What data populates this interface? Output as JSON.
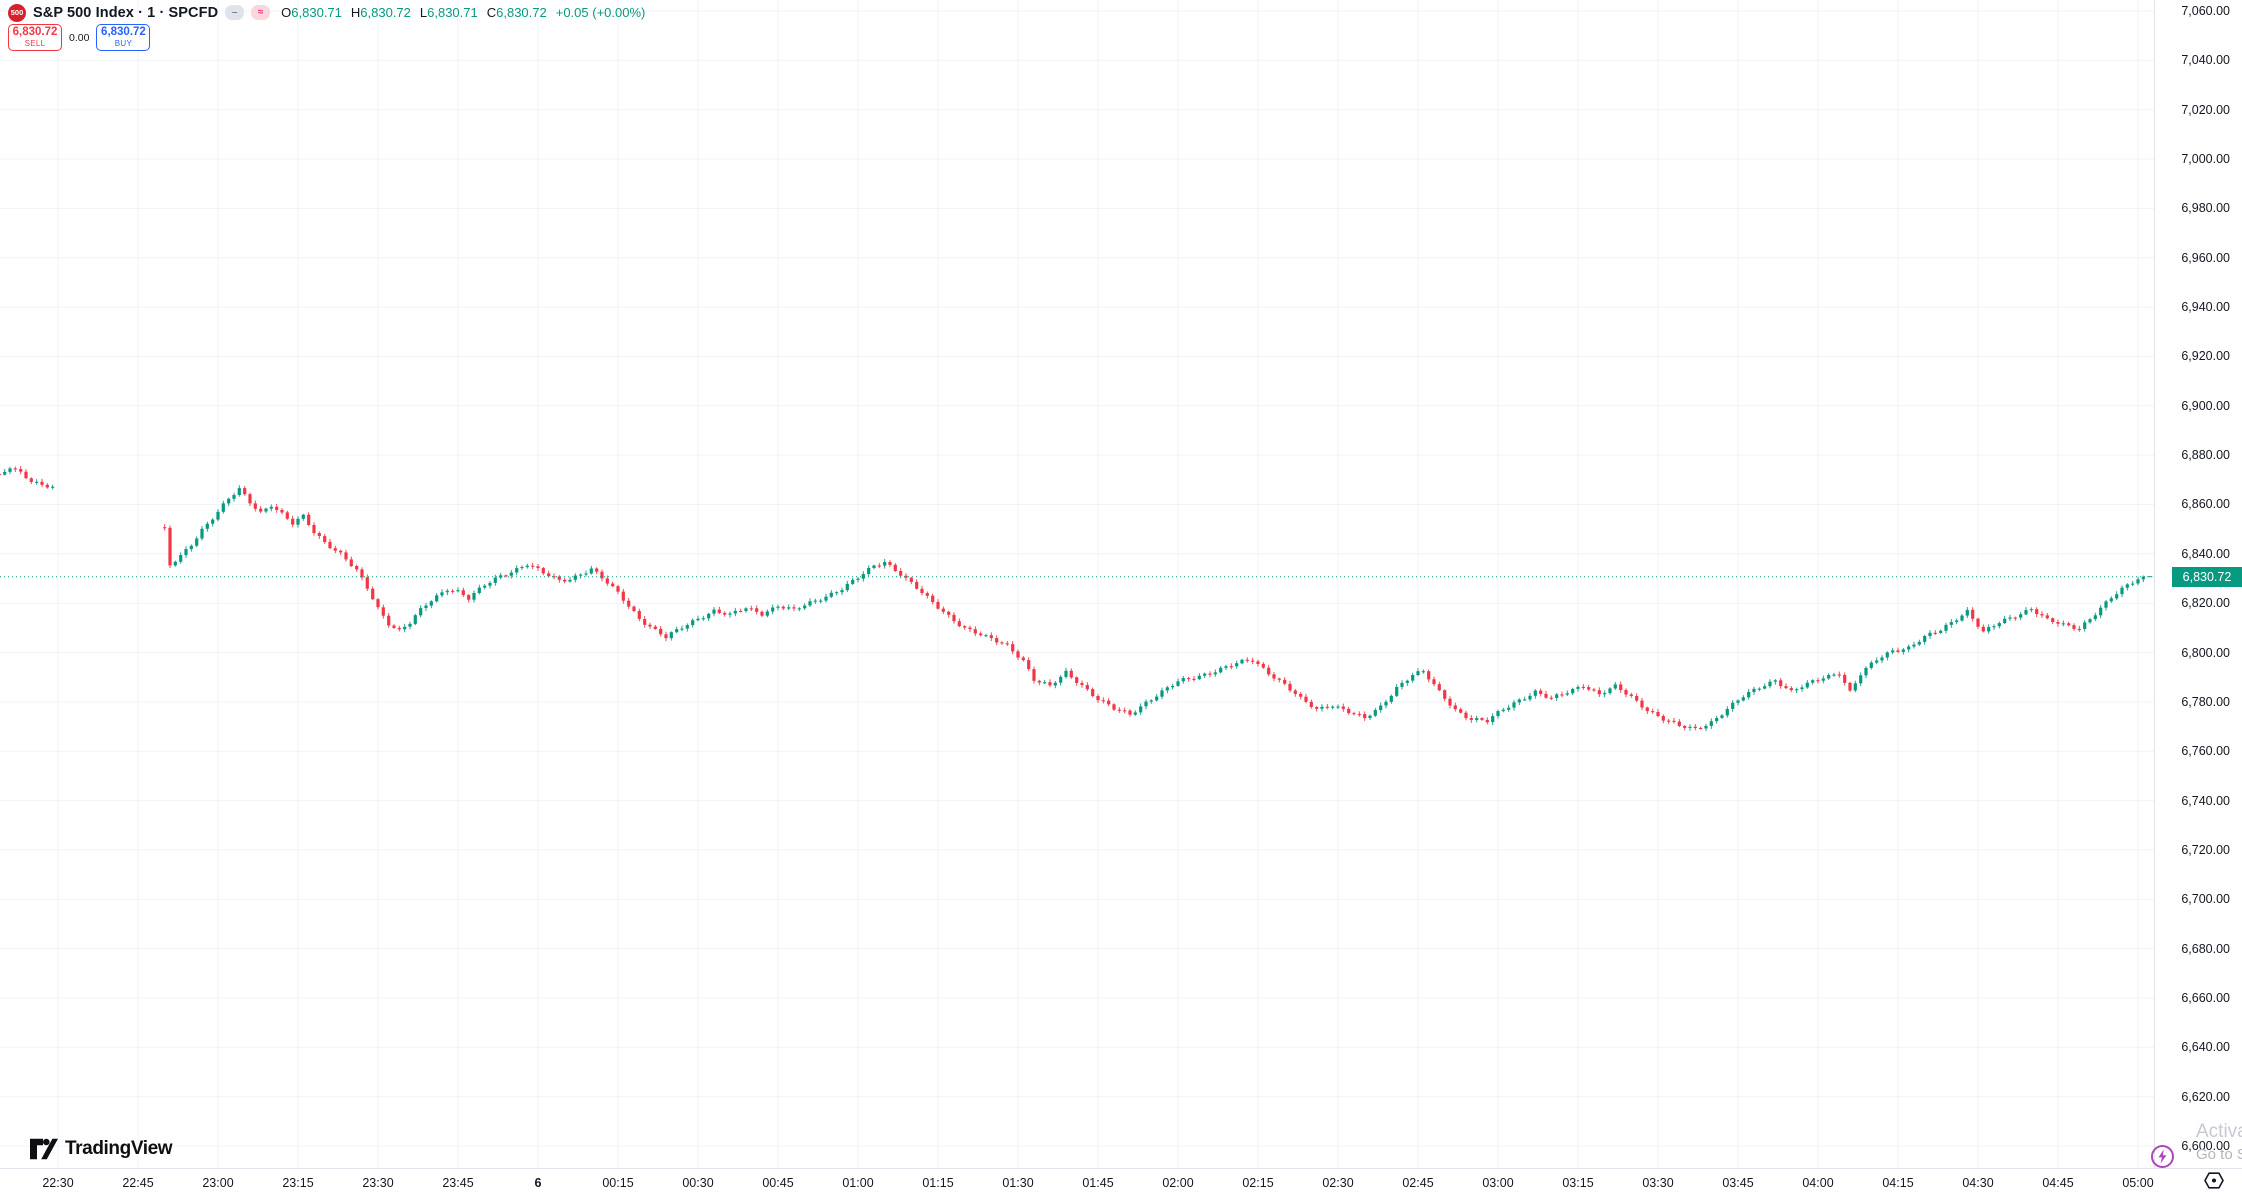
{
  "header": {
    "symbol_badge": "500",
    "title": "S&P 500 Index · 1 · SPCFD",
    "ohlc": {
      "o_label": "O",
      "o": "6,830.71",
      "h_label": "H",
      "h": "6,830.72",
      "l_label": "L",
      "l": "6,830.71",
      "c_label": "C",
      "c": "6,830.72",
      "change": "+0.05 (+0.00%)"
    },
    "sell_button": {
      "price": "6,830.72",
      "label": "SELL"
    },
    "spread": "0.00",
    "buy_button": {
      "price": "6,830.72",
      "label": "BUY"
    }
  },
  "watermark": {
    "brand": "TradingView"
  },
  "promo": {
    "line1": "Activa",
    "line2": "Go to S"
  },
  "price_axis": {
    "labels": [
      "7,060.00",
      "7,040.00",
      "7,020.00",
      "7,000.00",
      "6,980.00",
      "6,960.00",
      "6,940.00",
      "6,920.00",
      "6,900.00",
      "6,880.00",
      "6,860.00",
      "6,840.00",
      "6,820.00",
      "6,800.00",
      "6,780.00",
      "6,760.00",
      "6,740.00",
      "6,720.00",
      "6,700.00",
      "6,680.00",
      "6,660.00",
      "6,640.00",
      "6,620.00",
      "6,600.00"
    ],
    "values": [
      7060,
      7040,
      7020,
      7000,
      6980,
      6960,
      6940,
      6920,
      6900,
      6880,
      6860,
      6840,
      6820,
      6800,
      6780,
      6760,
      6740,
      6720,
      6700,
      6680,
      6660,
      6640,
      6620,
      6600
    ],
    "last_price_label": "6,830.72"
  },
  "time_axis": {
    "labels": [
      {
        "text": "22:30",
        "bold": false
      },
      {
        "text": "22:45",
        "bold": false
      },
      {
        "text": "23:00",
        "bold": false
      },
      {
        "text": "23:15",
        "bold": false
      },
      {
        "text": "23:30",
        "bold": false
      },
      {
        "text": "23:45",
        "bold": false
      },
      {
        "text": "6",
        "bold": true
      },
      {
        "text": "00:15",
        "bold": false
      },
      {
        "text": "00:30",
        "bold": false
      },
      {
        "text": "00:45",
        "bold": false
      },
      {
        "text": "01:00",
        "bold": false
      },
      {
        "text": "01:15",
        "bold": false
      },
      {
        "text": "01:30",
        "bold": false
      },
      {
        "text": "01:45",
        "bold": false
      },
      {
        "text": "02:00",
        "bold": false
      },
      {
        "text": "02:15",
        "bold": false
      },
      {
        "text": "02:30",
        "bold": false
      },
      {
        "text": "02:45",
        "bold": false
      },
      {
        "text": "03:00",
        "bold": false
      },
      {
        "text": "03:15",
        "bold": false
      },
      {
        "text": "03:30",
        "bold": false
      },
      {
        "text": "03:45",
        "bold": false
      },
      {
        "text": "04:00",
        "bold": false
      },
      {
        "text": "04:15",
        "bold": false
      },
      {
        "text": "04:30",
        "bold": false
      },
      {
        "text": "04:45",
        "bold": false
      },
      {
        "text": "05:00",
        "bold": false
      }
    ]
  },
  "colors": {
    "up": "#089981",
    "down": "#f23645",
    "grid": "#f0f3fa",
    "sell": "#f23645",
    "buy": "#2962ff",
    "badge_bg": "#089981",
    "text": "#131722",
    "muted": "#787b86",
    "watermark_gray": "#c6c9d1",
    "purple": "#ab47bc"
  },
  "chart_data": {
    "type": "candlestick",
    "title": "S&P 500 Index",
    "interval": "1 minute",
    "exchange": "SPCFD",
    "current_bar": {
      "open": 6830.71,
      "high": 6830.72,
      "low": 6830.71,
      "close": 6830.72,
      "change": 0.05,
      "change_pct": 0.0
    },
    "price_line": 6830.72,
    "ylim": [
      6600,
      7060
    ],
    "y_step": 20,
    "x_start": "22:19",
    "x_end": "05:01",
    "x_tick_step_minutes": 15,
    "session_gap": {
      "from": "22:30",
      "to": "22:50"
    },
    "grid": true,
    "path_anchors": [
      [
        "22:19",
        6871
      ],
      [
        "22:21",
        6875
      ],
      [
        "22:23",
        6873
      ],
      [
        "22:25",
        6870
      ],
      [
        "22:27",
        6868
      ],
      [
        "22:29",
        6867
      ],
      [
        "22:50",
        6849.5
      ],
      [
        "22:51",
        6835
      ],
      [
        "22:53",
        6839
      ],
      [
        "22:55",
        6844
      ],
      [
        "22:57",
        6850
      ],
      [
        "23:00",
        6857
      ],
      [
        "23:02",
        6862
      ],
      [
        "23:04",
        6866
      ],
      [
        "23:06",
        6861
      ],
      [
        "23:08",
        6857
      ],
      [
        "23:10",
        6860
      ],
      [
        "23:12",
        6856
      ],
      [
        "23:14",
        6852
      ],
      [
        "23:16",
        6855
      ],
      [
        "23:18",
        6849
      ],
      [
        "23:20",
        6845
      ],
      [
        "23:23",
        6840
      ],
      [
        "23:26",
        6833
      ],
      [
        "23:28",
        6826
      ],
      [
        "23:30",
        6818
      ],
      [
        "23:32",
        6812
      ],
      [
        "23:34",
        6809
      ],
      [
        "23:36",
        6812
      ],
      [
        "23:38",
        6817
      ],
      [
        "23:40",
        6821
      ],
      [
        "23:43",
        6826
      ],
      [
        "23:45",
        6825
      ],
      [
        "23:47",
        6822
      ],
      [
        "23:50",
        6827
      ],
      [
        "23:53",
        6831
      ],
      [
        "23:56",
        6834
      ],
      [
        "23:58",
        6836
      ],
      [
        "00:01",
        6832
      ],
      [
        "00:04",
        6829
      ],
      [
        "00:06",
        6830
      ],
      [
        "00:08",
        6832
      ],
      [
        "00:10",
        6834
      ],
      [
        "00:12",
        6830
      ],
      [
        "00:15",
        6824
      ],
      [
        "00:17",
        6819
      ],
      [
        "00:19",
        6814
      ],
      [
        "00:22",
        6809
      ],
      [
        "00:24",
        6806
      ],
      [
        "00:27",
        6810
      ],
      [
        "00:30",
        6814
      ],
      [
        "00:33",
        6817
      ],
      [
        "00:36",
        6815
      ],
      [
        "00:39",
        6818
      ],
      [
        "00:42",
        6816
      ],
      [
        "00:45",
        6819
      ],
      [
        "00:48",
        6817
      ],
      [
        "00:51",
        6820
      ],
      [
        "00:54",
        6823
      ],
      [
        "00:57",
        6826
      ],
      [
        "01:00",
        6830
      ],
      [
        "01:03",
        6835
      ],
      [
        "01:05",
        6837
      ],
      [
        "01:08",
        6832
      ],
      [
        "01:11",
        6826
      ],
      [
        "01:14",
        6820
      ],
      [
        "01:17",
        6815
      ],
      [
        "01:20",
        6810
      ],
      [
        "01:24",
        6806
      ],
      [
        "01:28",
        6803
      ],
      [
        "01:31",
        6797
      ],
      [
        "01:33",
        6789
      ],
      [
        "01:36",
        6786
      ],
      [
        "01:39",
        6792
      ],
      [
        "01:42",
        6787
      ],
      [
        "01:45",
        6781
      ],
      [
        "01:48",
        6777
      ],
      [
        "01:51",
        6775
      ],
      [
        "01:54",
        6780
      ],
      [
        "01:57",
        6784
      ],
      [
        "02:00",
        6788
      ],
      [
        "02:03",
        6790
      ],
      [
        "02:06",
        6792
      ],
      [
        "02:09",
        6794
      ],
      [
        "02:12",
        6796
      ],
      [
        "02:14",
        6797
      ],
      [
        "02:17",
        6792
      ],
      [
        "02:20",
        6787
      ],
      [
        "02:23",
        6781
      ],
      [
        "02:26",
        6777
      ],
      [
        "02:29",
        6779
      ],
      [
        "02:32",
        6776
      ],
      [
        "02:35",
        6773
      ],
      [
        "02:38",
        6778
      ],
      [
        "02:41",
        6786
      ],
      [
        "02:44",
        6791
      ],
      [
        "02:46",
        6792
      ],
      [
        "02:49",
        6784
      ],
      [
        "02:52",
        6777
      ],
      [
        "02:55",
        6773
      ],
      [
        "02:58",
        6772
      ],
      [
        "03:01",
        6777
      ],
      [
        "03:04",
        6781
      ],
      [
        "03:07",
        6784
      ],
      [
        "03:10",
        6781
      ],
      [
        "03:13",
        6784
      ],
      [
        "03:16",
        6787
      ],
      [
        "03:19",
        6783
      ],
      [
        "03:22",
        6786
      ],
      [
        "03:25",
        6782
      ],
      [
        "03:28",
        6777
      ],
      [
        "03:31",
        6773
      ],
      [
        "03:34",
        6770
      ],
      [
        "03:37",
        6769
      ],
      [
        "03:40",
        6772
      ],
      [
        "03:43",
        6777
      ],
      [
        "03:46",
        6782
      ],
      [
        "03:49",
        6786
      ],
      [
        "03:52",
        6789
      ],
      [
        "03:55",
        6784
      ],
      [
        "03:58",
        6787
      ],
      [
        "04:01",
        6790
      ],
      [
        "04:04",
        6792
      ],
      [
        "04:06",
        6784
      ],
      [
        "04:08",
        6791
      ],
      [
        "04:11",
        6797
      ],
      [
        "04:14",
        6801
      ],
      [
        "04:17",
        6802
      ],
      [
        "04:20",
        6806
      ],
      [
        "04:23",
        6809
      ],
      [
        "04:26",
        6814
      ],
      [
        "04:28",
        6817
      ],
      [
        "04:31",
        6808
      ],
      [
        "04:34",
        6812
      ],
      [
        "04:37",
        6815
      ],
      [
        "04:40",
        6818
      ],
      [
        "04:43",
        6813
      ],
      [
        "04:46",
        6811
      ],
      [
        "04:49",
        6810
      ],
      [
        "04:52",
        6816
      ],
      [
        "04:55",
        6822
      ],
      [
        "04:58",
        6827
      ],
      [
        "05:00",
        6830
      ],
      [
        "05:01",
        6830.72
      ]
    ]
  }
}
